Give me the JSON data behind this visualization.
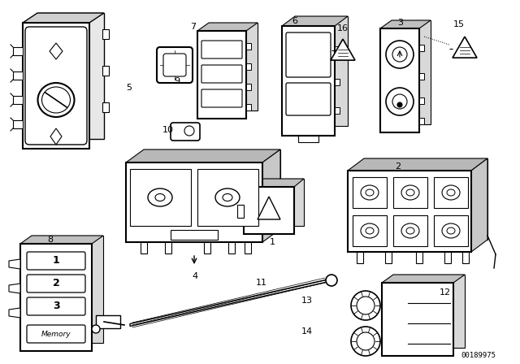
{
  "background_color": "#ffffff",
  "part_number": "00189975",
  "figsize": [
    6.4,
    4.48
  ],
  "dpi": 100
}
